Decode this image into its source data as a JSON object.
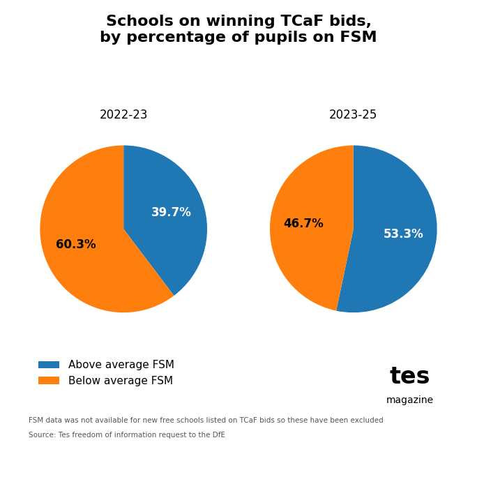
{
  "title": "Schools on winning TCaF bids,\nby percentage of pupils on FSM",
  "legend": "lower left",
  "annotations": [
    "FSM data was not available for new free schools listed on TCaF bids so these have been excluded",
    "Source: ​Tes freedom of information request to the DfE",
    "tes",
    "magazine"
  ],
  "chart_data": [
    {
      "type": "pie",
      "title": "2022-23",
      "categories": [
        "Above average FSM",
        "Below average FSM"
      ],
      "values": [
        39.7,
        60.3
      ],
      "value_labels": [
        "39.7%",
        "60.3%"
      ],
      "data_labels": true
    },
    {
      "type": "pie",
      "title": "2023-25",
      "categories": [
        "Above average FSM",
        "Below average FSM"
      ],
      "values": [
        53.3,
        46.7
      ],
      "value_labels": [
        "53.3%",
        "46.7%"
      ],
      "data_labels": true
    }
  ]
}
